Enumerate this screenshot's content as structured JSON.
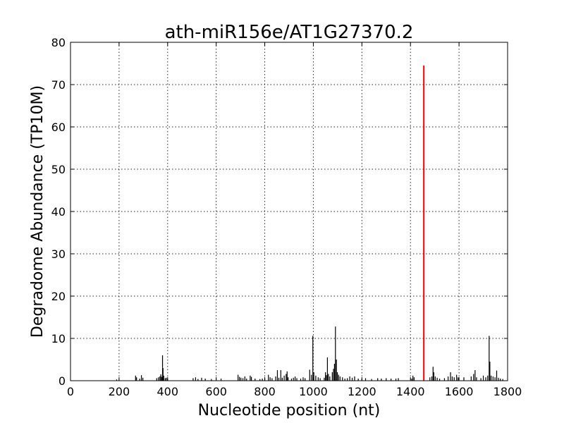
{
  "chart_data": {
    "type": "bar",
    "title": "ath-miR156e/AT1G27370.2",
    "xlabel": "Nucleotide position (nt)",
    "ylabel": "Degradome Abundance (TP10M)",
    "xlim": [
      0,
      1800
    ],
    "ylim": [
      0,
      80
    ],
    "xticks": [
      0,
      200,
      400,
      600,
      800,
      1000,
      1200,
      1400,
      1600,
      1800
    ],
    "yticks": [
      0,
      10,
      20,
      30,
      40,
      50,
      60,
      70,
      80
    ],
    "grid": true,
    "colors": {
      "series": "#000000",
      "highlight": "#ff0000"
    },
    "series": [
      {
        "values": [
          [
            190,
            0.3
          ],
          [
            268,
            1.2
          ],
          [
            272,
            0.8
          ],
          [
            285,
            0.5
          ],
          [
            292,
            1.3
          ],
          [
            298,
            0.7
          ],
          [
            355,
            0.6
          ],
          [
            362,
            0.8
          ],
          [
            368,
            1.0
          ],
          [
            372,
            1.5
          ],
          [
            376,
            0.9
          ],
          [
            379,
            6.0
          ],
          [
            381,
            3.0
          ],
          [
            384,
            1.2
          ],
          [
            390,
            0.6
          ],
          [
            395,
            0.7
          ],
          [
            400,
            0.4
          ],
          [
            505,
            0.6
          ],
          [
            515,
            0.8
          ],
          [
            525,
            0.4
          ],
          [
            540,
            0.7
          ],
          [
            555,
            0.5
          ],
          [
            580,
            0.4
          ],
          [
            620,
            0.5
          ],
          [
            690,
            1.4
          ],
          [
            696,
            0.9
          ],
          [
            702,
            0.7
          ],
          [
            710,
            0.6
          ],
          [
            718,
            1.0
          ],
          [
            725,
            0.5
          ],
          [
            740,
            1.2
          ],
          [
            745,
            0.9
          ],
          [
            760,
            0.5
          ],
          [
            780,
            0.4
          ],
          [
            790,
            0.5
          ],
          [
            800,
            0.6
          ],
          [
            815,
            1.4
          ],
          [
            822,
            0.8
          ],
          [
            830,
            0.6
          ],
          [
            845,
            1.0
          ],
          [
            852,
            2.5
          ],
          [
            858,
            0.7
          ],
          [
            866,
            2.5
          ],
          [
            872,
            0.7
          ],
          [
            880,
            1.2
          ],
          [
            888,
            1.6
          ],
          [
            892,
            2.2
          ],
          [
            896,
            0.8
          ],
          [
            910,
            0.5
          ],
          [
            918,
            0.7
          ],
          [
            925,
            1.0
          ],
          [
            932,
            0.6
          ],
          [
            948,
            0.5
          ],
          [
            958,
            0.8
          ],
          [
            966,
            0.6
          ],
          [
            985,
            2.6
          ],
          [
            992,
            1.4
          ],
          [
            998,
            10.6
          ],
          [
            1002,
            2.0
          ],
          [
            1010,
            1.2
          ],
          [
            1020,
            0.8
          ],
          [
            1028,
            0.6
          ],
          [
            1045,
            0.7
          ],
          [
            1050,
            2.0
          ],
          [
            1054,
            1.3
          ],
          [
            1058,
            5.5
          ],
          [
            1062,
            1.6
          ],
          [
            1068,
            1.0
          ],
          [
            1078,
            2.0
          ],
          [
            1083,
            2.8
          ],
          [
            1087,
            4.0
          ],
          [
            1091,
            12.8
          ],
          [
            1095,
            5.0
          ],
          [
            1099,
            2.0
          ],
          [
            1104,
            1.4
          ],
          [
            1110,
            1.0
          ],
          [
            1120,
            0.8
          ],
          [
            1130,
            0.5
          ],
          [
            1140,
            0.6
          ],
          [
            1150,
            1.0
          ],
          [
            1160,
            0.7
          ],
          [
            1170,
            1.0
          ],
          [
            1185,
            0.5
          ],
          [
            1200,
            0.5
          ],
          [
            1215,
            0.6
          ],
          [
            1240,
            0.4
          ],
          [
            1265,
            0.6
          ],
          [
            1280,
            0.5
          ],
          [
            1300,
            0.6
          ],
          [
            1320,
            0.5
          ],
          [
            1340,
            0.5
          ],
          [
            1350,
            0.6
          ],
          [
            1405,
            0.5
          ],
          [
            1410,
            1.2
          ],
          [
            1415,
            0.8
          ],
          [
            1480,
            0.8
          ],
          [
            1488,
            1.0
          ],
          [
            1493,
            3.3
          ],
          [
            1496,
            2.0
          ],
          [
            1502,
            1.0
          ],
          [
            1510,
            0.7
          ],
          [
            1520,
            0.5
          ],
          [
            1540,
            0.6
          ],
          [
            1555,
            1.0
          ],
          [
            1565,
            2.0
          ],
          [
            1572,
            1.0
          ],
          [
            1580,
            0.8
          ],
          [
            1590,
            1.4
          ],
          [
            1596,
            0.8
          ],
          [
            1620,
            0.8
          ],
          [
            1650,
            1.0
          ],
          [
            1660,
            1.6
          ],
          [
            1666,
            2.5
          ],
          [
            1672,
            0.8
          ],
          [
            1690,
            0.6
          ],
          [
            1700,
            1.2
          ],
          [
            1710,
            0.8
          ],
          [
            1718,
            1.2
          ],
          [
            1724,
            10.6
          ],
          [
            1727,
            4.5
          ],
          [
            1732,
            1.2
          ],
          [
            1740,
            1.0
          ],
          [
            1748,
            0.8
          ],
          [
            1755,
            2.4
          ],
          [
            1762,
            0.7
          ],
          [
            1770,
            0.5
          ],
          [
            1780,
            0.4
          ]
        ]
      }
    ],
    "highlight": {
      "x": 1455,
      "y": 74.5,
      "color": "#ff0000"
    }
  }
}
